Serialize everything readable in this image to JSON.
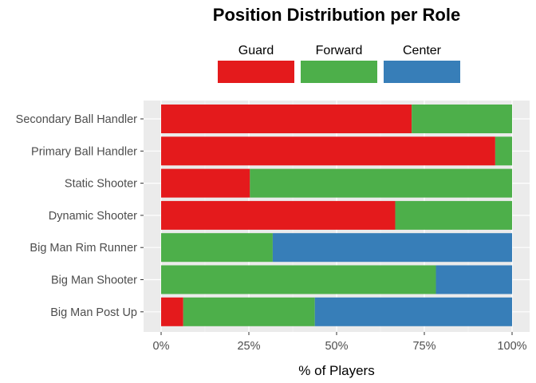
{
  "chart_data": {
    "type": "bar",
    "orientation": "horizontal",
    "stacked": true,
    "title": "Position Distribution per Role",
    "xlabel": "% of Players",
    "ylabel": "",
    "xlim": [
      0,
      100
    ],
    "x_ticks": [
      "0%",
      "25%",
      "50%",
      "75%",
      "100%"
    ],
    "x_tick_values": [
      0,
      25,
      50,
      75,
      100
    ],
    "grid": true,
    "legend_position": "top",
    "categories": [
      "Secondary Ball Handler",
      "Primary Ball Handler",
      "Static Shooter",
      "Dynamic Shooter",
      "Big Man Rim Runner",
      "Big Man Shooter",
      "Big Man Post Up"
    ],
    "series": [
      {
        "name": "Guard",
        "color": "#e41a1c",
        "values": [
          71.4,
          95.2,
          25.3,
          66.7,
          0,
          0,
          6.3
        ]
      },
      {
        "name": "Forward",
        "color": "#4daf4a",
        "values": [
          28.6,
          4.8,
          74.7,
          33.3,
          31.8,
          78.3,
          37.5
        ]
      },
      {
        "name": "Center",
        "color": "#377eb8",
        "values": [
          0,
          0,
          0,
          0,
          68.2,
          21.7,
          56.2
        ]
      }
    ]
  }
}
